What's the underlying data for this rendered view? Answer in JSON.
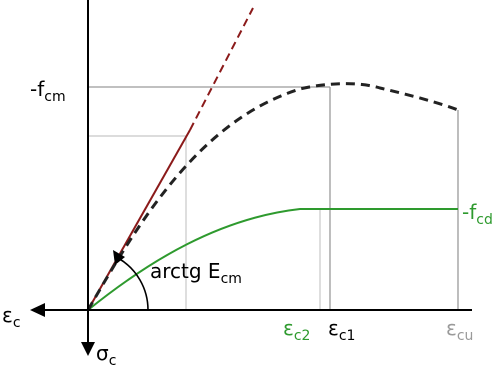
{
  "colors": {
    "axes": "#000000",
    "mean_curve": "#222222",
    "design_curve": "#2e9a2e",
    "tangent": "#8b1a1a",
    "guide": "#9a9a9a",
    "guide_light": "#c8c8c8",
    "eps_cu_label": "#9a9a9a"
  },
  "labels": {
    "neg_fcm": {
      "base": "-f",
      "sub": "cm"
    },
    "neg_fcd": {
      "base": "-f",
      "sub": "cd"
    },
    "eps_c": {
      "base": "ε",
      "sub": "c"
    },
    "sigma_c": {
      "base": "σ",
      "sub": "c"
    },
    "eps_c2": {
      "base": "ε",
      "sub": "c2"
    },
    "eps_c1": {
      "base": "ε",
      "sub": "c1"
    },
    "eps_cu": {
      "base": "ε",
      "sub": "cu"
    },
    "arctg_ecm": {
      "base": "arctg E",
      "sub": "cm"
    }
  },
  "icons": {
    "eps_c_arrow": "arrow-left-icon",
    "sigma_c_arrow": "arrow-down-icon",
    "angle_arrow": "curved-arrow-icon"
  }
}
